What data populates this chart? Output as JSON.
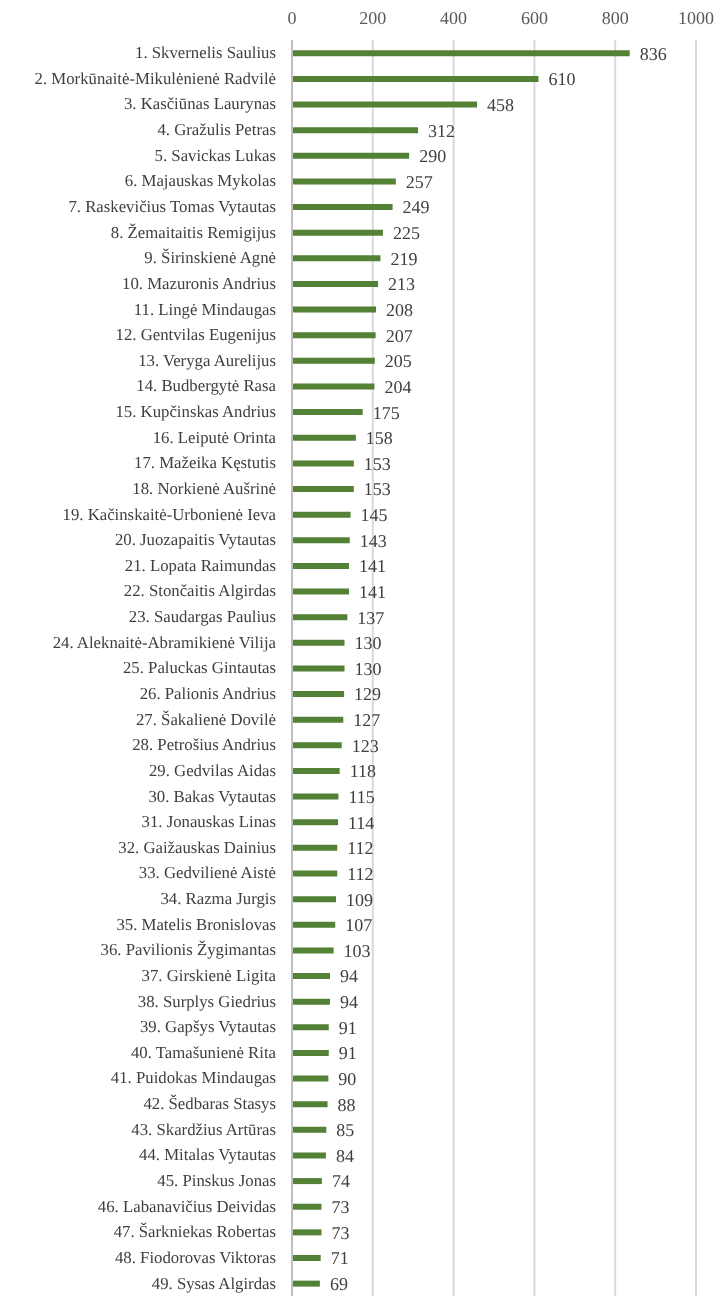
{
  "chart_data": {
    "type": "bar",
    "orientation": "horizontal",
    "categories": [
      "1. Skvernelis Saulius",
      "2. Morkūnaitė-Mikulėnienė Radvilė",
      "3. Kasčiūnas Laurynas",
      "4. Gražulis Petras",
      "5. Savickas Lukas",
      "6. Majauskas Mykolas",
      "7. Raskevičius Tomas Vytautas",
      "8. Žemaitaitis Remigijus",
      "9. Širinskienė Agnė",
      "10. Mazuronis Andrius",
      "11. Lingė Mindaugas",
      "12. Gentvilas Eugenijus",
      "13. Veryga Aurelijus",
      "14. Budbergytė Rasa",
      "15. Kupčinskas Andrius",
      "16. Leiputė Orinta",
      "17. Mažeika Kęstutis",
      "18. Norkienė Aušrinė",
      "19. Kačinskaitė-Urbonienė Ieva",
      "20. Juozapaitis Vytautas",
      "21. Lopata Raimundas",
      "22. Stončaitis Algirdas",
      "23. Saudargas Paulius",
      "24. Aleknaitė-Abramikienė Vilija",
      "25. Paluckas Gintautas",
      "26. Palionis Andrius",
      "27. Šakalienė Dovilė",
      "28. Petrošius Andrius",
      "29. Gedvilas Aidas",
      "30. Bakas Vytautas",
      "31. Jonauskas Linas",
      "32. Gaižauskas Dainius",
      "33. Gedvilienė Aistė",
      "34. Razma Jurgis",
      "35. Matelis Bronislovas",
      "36. Pavilionis Žygimantas",
      "37. Girskienė Ligita",
      "38. Surplys Giedrius",
      "39. Gapšys Vytautas",
      "40. Tamašunienė Rita",
      "41. Puidokas Mindaugas",
      "42. Šedbaras Stasys",
      "43. Skardžius Artūras",
      "44. Mitalas Vytautas",
      "45. Pinskus Jonas",
      "46. Labanavičius Deividas",
      "47. Šarkniekas Robertas",
      "48. Fiodorovas Viktoras",
      "49. Sysas Algirdas"
    ],
    "values": [
      836,
      610,
      458,
      312,
      290,
      257,
      249,
      225,
      219,
      213,
      208,
      207,
      205,
      204,
      175,
      158,
      153,
      153,
      145,
      143,
      141,
      141,
      137,
      130,
      130,
      129,
      127,
      123,
      118,
      115,
      114,
      112,
      112,
      109,
      107,
      103,
      94,
      94,
      91,
      91,
      90,
      88,
      85,
      84,
      74,
      73,
      73,
      71,
      69
    ],
    "color": "#538135",
    "xlim": [
      0,
      1000
    ],
    "xticks": [
      0,
      200,
      400,
      600,
      800,
      1000
    ],
    "grid": "x",
    "data_labels": true
  }
}
